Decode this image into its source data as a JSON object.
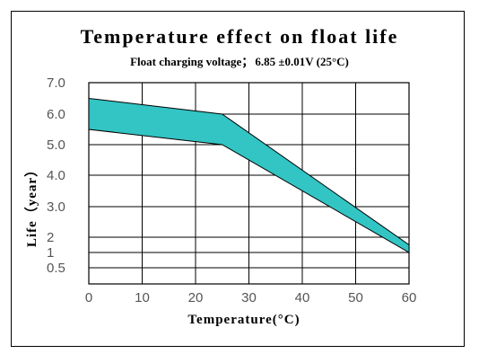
{
  "chart_data": {
    "type": "area",
    "title": "Temperature effect on float life",
    "subtitle_label": "Float charging voltage；",
    "subtitle_value": "6.85 ±0.01V (25°C)",
    "xlabel": "Temperature(°C)",
    "ylabel": "Life（year）",
    "xlim": [
      0,
      60
    ],
    "x_ticks": [
      0,
      10,
      20,
      30,
      40,
      50,
      60
    ],
    "y_ticks": [
      {
        "value": 0.5,
        "label": "0.5"
      },
      {
        "value": 1,
        "label": "1"
      },
      {
        "value": 2,
        "label": "2"
      },
      {
        "value": 3,
        "label": "3.0"
      },
      {
        "value": 4,
        "label": "4.0"
      },
      {
        "value": 5,
        "label": "5.0"
      },
      {
        "value": 6,
        "label": "6.0"
      },
      {
        "value": 7,
        "label": "7.0"
      }
    ],
    "grid": true,
    "series": [
      {
        "values": [
          {
            "x": 0,
            "y": 6.5
          },
          {
            "x": 25,
            "y": 6.0
          },
          {
            "x": 60,
            "y": 1.5
          }
        ]
      },
      {
        "values": [
          {
            "x": 0,
            "y": 5.5
          },
          {
            "x": 25,
            "y": 5.0
          },
          {
            "x": 60,
            "y": 1.0
          }
        ]
      }
    ],
    "fill_color": "#33c4c4"
  }
}
